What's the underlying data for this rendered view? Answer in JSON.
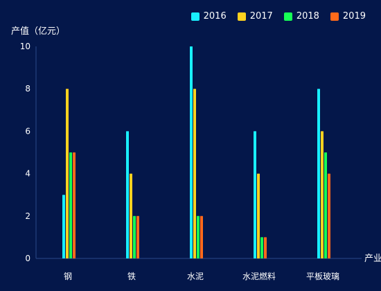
{
  "chart_data": {
    "type": "bar",
    "title": "",
    "xlabel": "产业",
    "ylabel": "产值（亿元）",
    "categories": [
      "钢",
      "铁",
      "水泥",
      "水泥燃料",
      "平板玻璃"
    ],
    "ylim": [
      0,
      10
    ],
    "yticks": [
      0,
      2,
      4,
      6,
      8,
      10
    ],
    "legend_position": "top-right",
    "grid": false,
    "series": [
      {
        "name": "2016",
        "color": "#19f0ff",
        "values": [
          3,
          6,
          10,
          6,
          8
        ]
      },
      {
        "name": "2017",
        "color": "#ffd21f",
        "values": [
          8,
          4,
          8,
          4,
          6
        ]
      },
      {
        "name": "2018",
        "color": "#16ff55",
        "values": [
          5,
          2,
          2,
          1,
          5
        ]
      },
      {
        "name": "2019",
        "color": "#ff6a1a",
        "values": [
          5,
          2,
          2,
          1,
          4
        ]
      }
    ]
  }
}
